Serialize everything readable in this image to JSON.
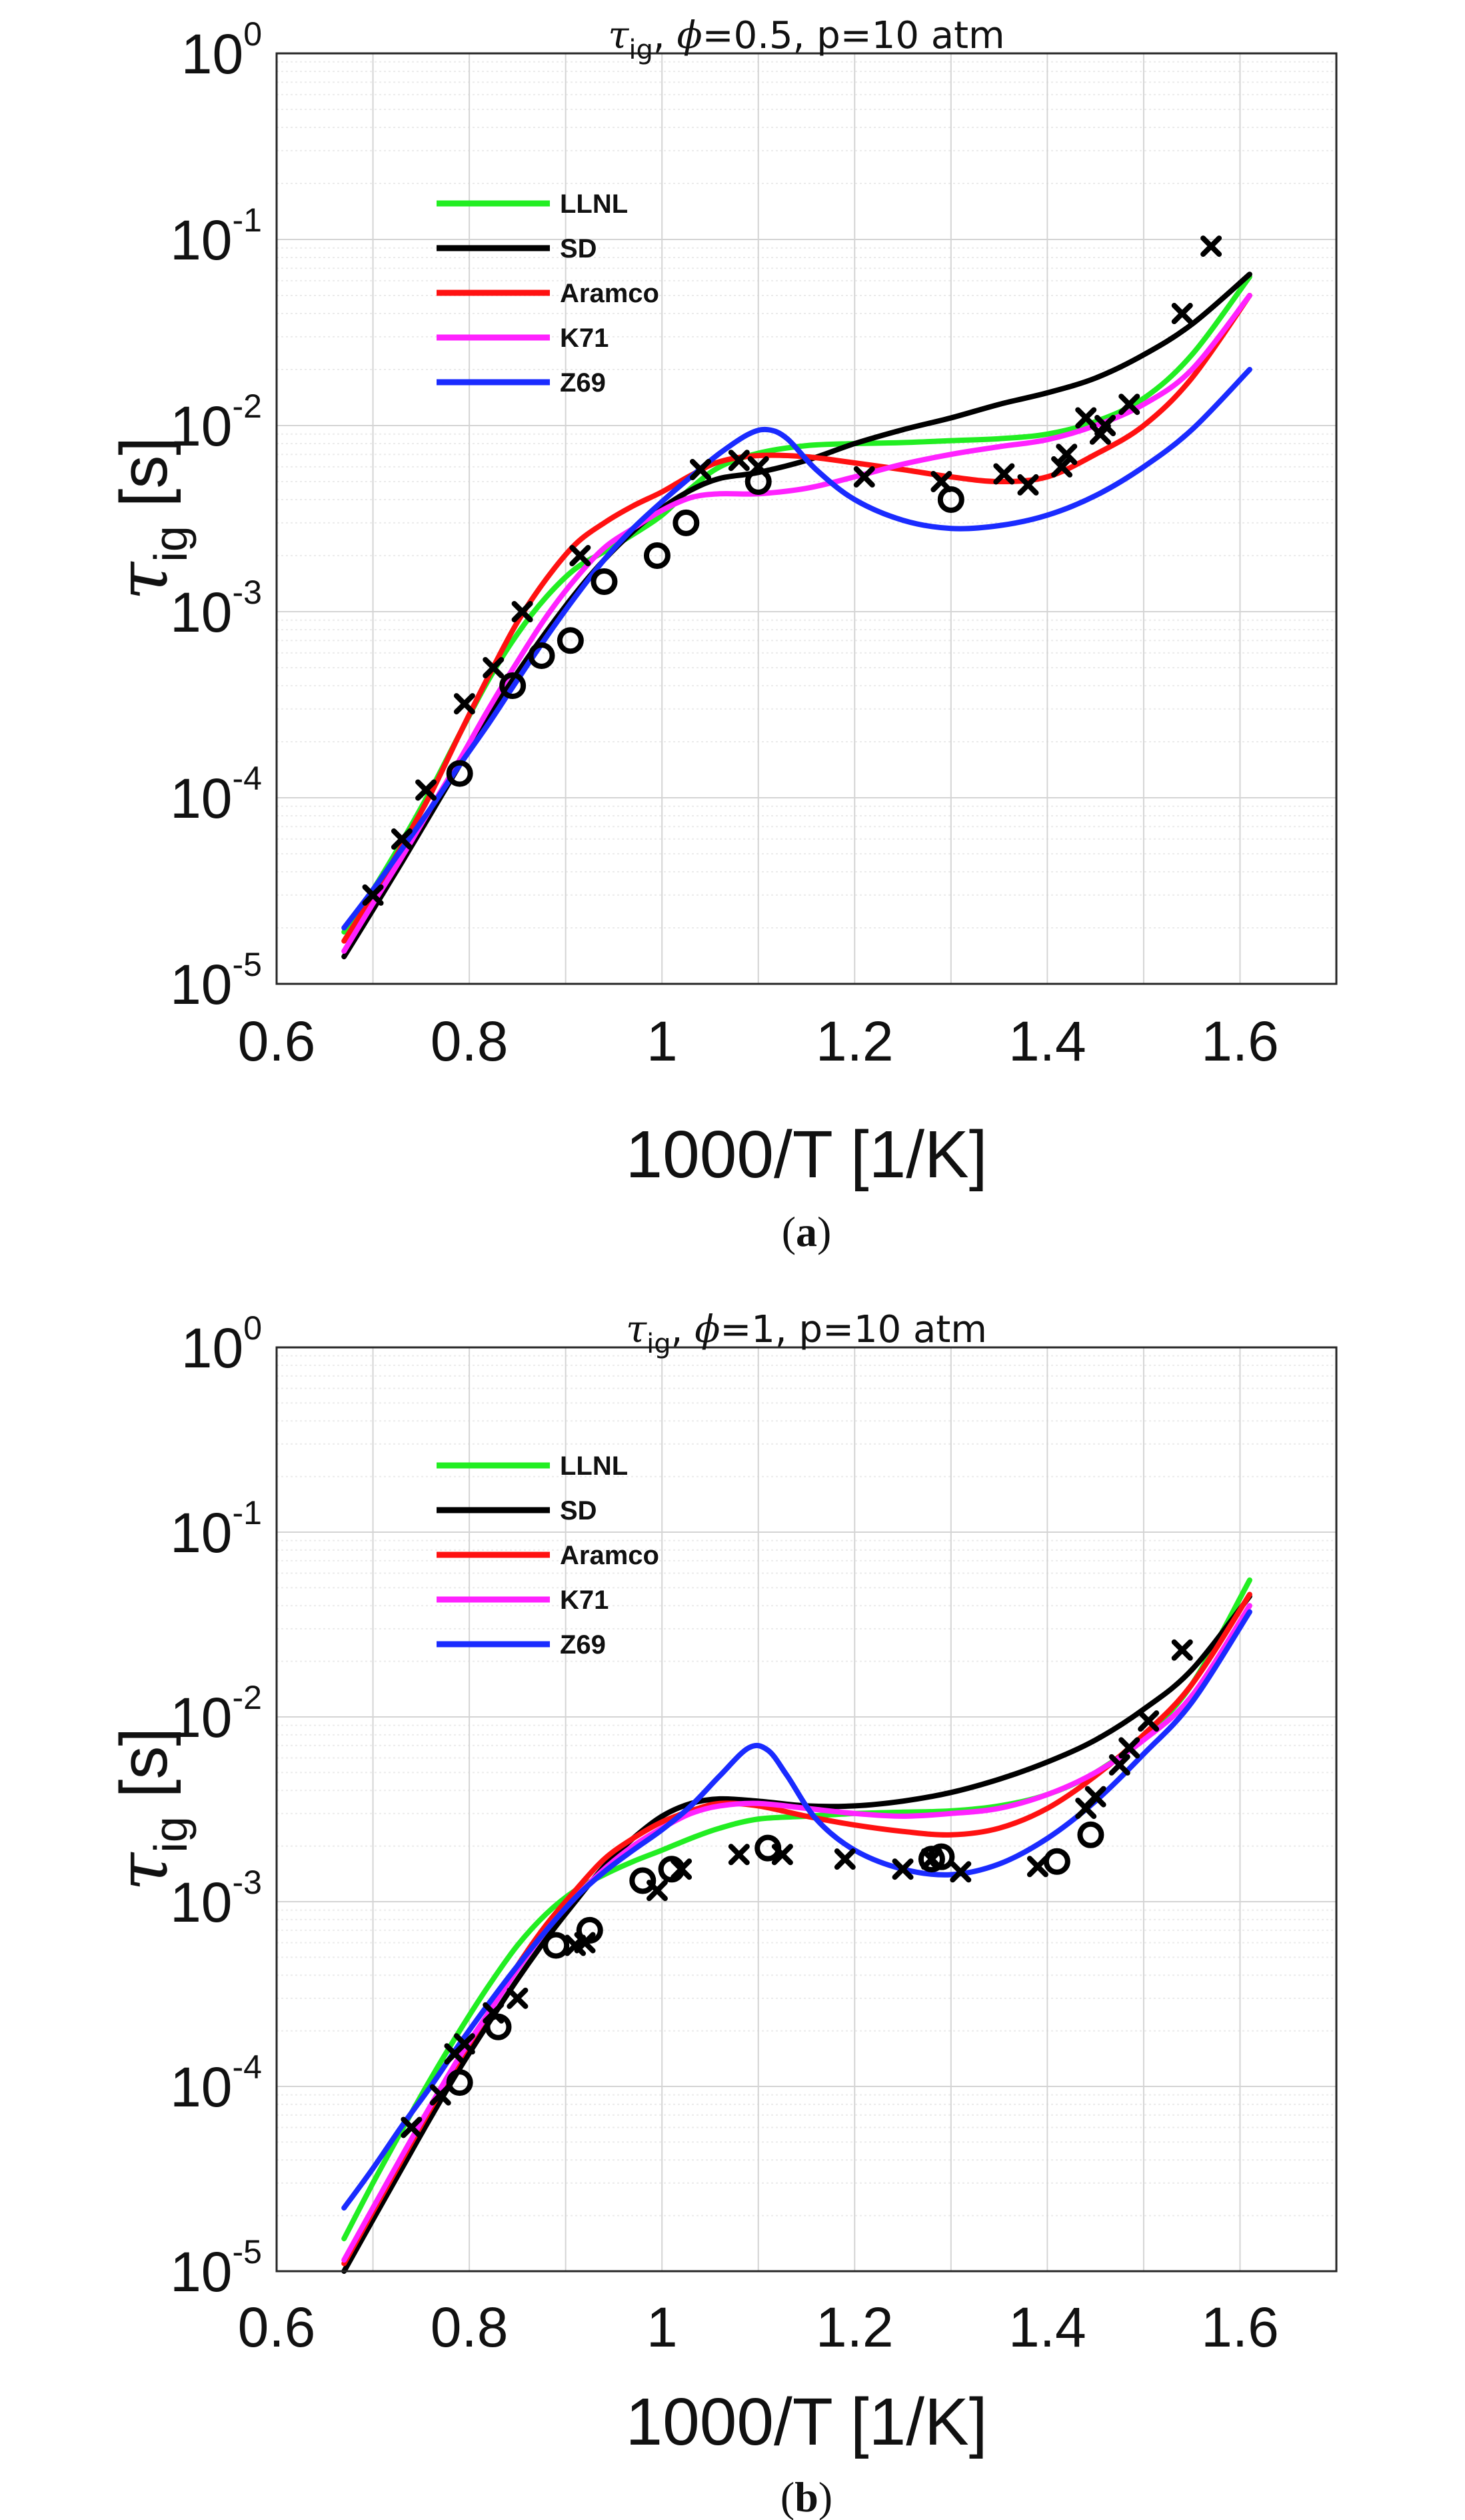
{
  "colors": {
    "LLNL": "#22ee22",
    "SD": "#000000",
    "Aramco": "#ff1111",
    "K71": "#ff22ff",
    "Z69": "#1a2bff",
    "frame": "#262626",
    "grid_major": "#d4d4d4",
    "grid_minor": "#ebebeb"
  },
  "chart_data": [
    {
      "type": "line",
      "panel_label": {
        "open": "(",
        "letter": "a",
        "close": ")"
      },
      "title": {
        "tau": "τ",
        "sub": "ig",
        "rest": ", ",
        "phi": "ϕ",
        "cond": "=0.5, p=10 atm"
      },
      "xlabel": "1000/T [1/K]",
      "ylabel": {
        "tau": "τ",
        "sub": "ig",
        "unit": " [s]"
      },
      "xlim": [
        0.6,
        1.7
      ],
      "ylim_exponent": [
        -5,
        0
      ],
      "yscale": "log",
      "grid": true,
      "legend_position": "top-left",
      "x_tick_labels": [
        "0.6",
        "0.8",
        "1",
        "1.2",
        "1.4",
        "1.6"
      ],
      "y_tick_labels": [
        {
          "base": "10",
          "exp": "-5"
        },
        {
          "base": "10",
          "exp": "-4"
        },
        {
          "base": "10",
          "exp": "-3"
        },
        {
          "base": "10",
          "exp": "-2"
        },
        {
          "base": "10",
          "exp": "-1"
        },
        {
          "base": "10",
          "exp": "0"
        }
      ],
      "series": [
        {
          "name": "LLNL",
          "x": [
            0.67,
            0.7,
            0.73,
            0.76,
            0.79,
            0.82,
            0.85,
            0.88,
            0.91,
            0.94,
            0.97,
            1.0,
            1.03,
            1.06,
            1.1,
            1.15,
            1.2,
            1.25,
            1.3,
            1.35,
            1.4,
            1.45,
            1.5,
            1.55,
            1.61
          ],
          "y": [
            1.9e-05,
            3.2e-05,
            5.8e-05,
            0.00011,
            0.00022,
            0.00043,
            0.00076,
            0.0012,
            0.0017,
            0.0021,
            0.0026,
            0.0033,
            0.0046,
            0.006,
            0.0071,
            0.0078,
            0.008,
            0.0081,
            0.0083,
            0.0085,
            0.009,
            0.0105,
            0.014,
            0.024,
            0.063
          ]
        },
        {
          "name": "SD",
          "x": [
            0.67,
            0.7,
            0.73,
            0.76,
            0.79,
            0.82,
            0.85,
            0.88,
            0.91,
            0.94,
            0.97,
            1.0,
            1.03,
            1.06,
            1.1,
            1.15,
            1.2,
            1.25,
            1.3,
            1.35,
            1.4,
            1.45,
            1.5,
            1.55,
            1.61
          ],
          "y": [
            1.4e-05,
            2.5e-05,
            4.5e-05,
            8.2e-05,
            0.00015,
            0.00027,
            0.00047,
            0.00078,
            0.00125,
            0.0019,
            0.0027,
            0.0036,
            0.0045,
            0.0052,
            0.0056,
            0.0065,
            0.008,
            0.0095,
            0.011,
            0.013,
            0.015,
            0.018,
            0.024,
            0.035,
            0.065
          ]
        },
        {
          "name": "Aramco",
          "x": [
            0.67,
            0.7,
            0.73,
            0.76,
            0.79,
            0.82,
            0.85,
            0.88,
            0.91,
            0.94,
            0.97,
            1.0,
            1.03,
            1.06,
            1.1,
            1.15,
            1.2,
            1.25,
            1.3,
            1.35,
            1.4,
            1.45,
            1.5,
            1.55,
            1.61
          ],
          "y": [
            1.7e-05,
            3e-05,
            5.5e-05,
            0.000105,
            0.00022,
            0.00045,
            0.00088,
            0.0015,
            0.0023,
            0.003,
            0.0037,
            0.0044,
            0.0054,
            0.0064,
            0.0069,
            0.0068,
            0.0063,
            0.0058,
            0.0053,
            0.005,
            0.0053,
            0.007,
            0.01,
            0.018,
            0.05
          ]
        },
        {
          "name": "K71",
          "x": [
            0.67,
            0.7,
            0.73,
            0.76,
            0.79,
            0.82,
            0.85,
            0.88,
            0.91,
            0.94,
            0.97,
            1.0,
            1.03,
            1.06,
            1.1,
            1.15,
            1.2,
            1.25,
            1.3,
            1.35,
            1.4,
            1.45,
            1.5,
            1.55,
            1.61
          ],
          "y": [
            1.5e-05,
            2.7e-05,
            4.8e-05,
            8.8e-05,
            0.00016,
            0.0003,
            0.00054,
            0.00094,
            0.0015,
            0.0022,
            0.0028,
            0.0035,
            0.0041,
            0.0043,
            0.0043,
            0.0046,
            0.0053,
            0.0062,
            0.007,
            0.0077,
            0.0084,
            0.01,
            0.013,
            0.02,
            0.05
          ]
        },
        {
          "name": "Z69",
          "x": [
            0.67,
            0.7,
            0.73,
            0.76,
            0.79,
            0.82,
            0.85,
            0.88,
            0.91,
            0.94,
            0.97,
            1.0,
            1.03,
            1.06,
            1.09,
            1.11,
            1.13,
            1.16,
            1.2,
            1.25,
            1.3,
            1.35,
            1.4,
            1.45,
            1.5,
            1.55,
            1.61
          ],
          "y": [
            2e-05,
            3.2e-05,
            5.3e-05,
            8.8e-05,
            0.00015,
            0.00025,
            0.00043,
            0.00073,
            0.0012,
            0.0019,
            0.0028,
            0.0039,
            0.0053,
            0.0071,
            0.009,
            0.0095,
            0.0085,
            0.0058,
            0.004,
            0.0031,
            0.0028,
            0.0029,
            0.0033,
            0.0042,
            0.006,
            0.0095,
            0.02
          ]
        }
      ],
      "markers": [
        {
          "name": "x-markers",
          "symbol": "x",
          "x": [
            0.7,
            0.73,
            0.755,
            0.795,
            0.825,
            0.855,
            0.915,
            1.04,
            1.08,
            1.1,
            1.21,
            1.29,
            1.355,
            1.38,
            1.415,
            1.42,
            1.44,
            1.455,
            1.46,
            1.485,
            1.54,
            1.57
          ],
          "y": [
            3e-05,
            6e-05,
            0.00011,
            0.00032,
            0.0005,
            0.001,
            0.002,
            0.0058,
            0.0065,
            0.006,
            0.0053,
            0.005,
            0.0055,
            0.0048,
            0.006,
            0.007,
            0.011,
            0.009,
            0.01,
            0.013,
            0.04,
            0.092
          ]
        },
        {
          "name": "o-markers",
          "symbol": "o",
          "x": [
            0.79,
            0.845,
            0.875,
            0.905,
            0.94,
            0.995,
            1.025,
            1.1,
            1.3
          ],
          "y": [
            0.000135,
            0.0004,
            0.00058,
            0.0007,
            0.00145,
            0.002,
            0.003,
            0.005,
            0.004
          ]
        }
      ]
    },
    {
      "type": "line",
      "panel_label": {
        "open": "(",
        "letter": "b",
        "close": ")"
      },
      "title": {
        "tau": "τ",
        "sub": "ig",
        "rest": ", ",
        "phi": "ϕ",
        "cond": "=1, p=10 atm"
      },
      "xlabel": "1000/T [1/K]",
      "ylabel": {
        "tau": "τ",
        "sub": "ig",
        "unit": " [s]"
      },
      "xlim": [
        0.6,
        1.7
      ],
      "ylim_exponent": [
        -5,
        0
      ],
      "yscale": "log",
      "grid": true,
      "legend_position": "top-left",
      "x_tick_labels": [
        "0.6",
        "0.8",
        "1",
        "1.2",
        "1.4",
        "1.6"
      ],
      "y_tick_labels": [
        {
          "base": "10",
          "exp": "-5"
        },
        {
          "base": "10",
          "exp": "-4"
        },
        {
          "base": "10",
          "exp": "-3"
        },
        {
          "base": "10",
          "exp": "-2"
        },
        {
          "base": "10",
          "exp": "-1"
        },
        {
          "base": "10",
          "exp": "0"
        }
      ],
      "series": [
        {
          "name": "LLNL",
          "x": [
            0.67,
            0.7,
            0.73,
            0.76,
            0.79,
            0.82,
            0.85,
            0.88,
            0.91,
            0.94,
            0.97,
            1.0,
            1.03,
            1.06,
            1.1,
            1.15,
            1.2,
            1.25,
            1.3,
            1.35,
            1.4,
            1.45,
            1.5,
            1.55,
            1.61
          ],
          "y": [
            1.5e-05,
            3e-05,
            5.8e-05,
            0.00011,
            0.0002,
            0.00035,
            0.00058,
            0.00086,
            0.00115,
            0.0014,
            0.00165,
            0.0019,
            0.0022,
            0.0025,
            0.0028,
            0.0029,
            0.003,
            0.00305,
            0.0031,
            0.0033,
            0.0038,
            0.005,
            0.0078,
            0.015,
            0.055
          ]
        },
        {
          "name": "SD",
          "x": [
            0.67,
            0.7,
            0.73,
            0.76,
            0.79,
            0.82,
            0.85,
            0.88,
            0.91,
            0.94,
            0.97,
            1.0,
            1.03,
            1.06,
            1.1,
            1.15,
            1.2,
            1.25,
            1.3,
            1.35,
            1.4,
            1.45,
            1.5,
            1.55,
            1.61
          ],
          "y": [
            1e-05,
            1.9e-05,
            3.6e-05,
            6.8e-05,
            0.000125,
            0.00022,
            0.00038,
            0.00063,
            0.001,
            0.00155,
            0.0022,
            0.0029,
            0.0034,
            0.0036,
            0.0035,
            0.0033,
            0.0033,
            0.0035,
            0.0039,
            0.0046,
            0.0057,
            0.0075,
            0.011,
            0.018,
            0.045
          ]
        },
        {
          "name": "Aramco",
          "x": [
            0.67,
            0.7,
            0.73,
            0.76,
            0.79,
            0.82,
            0.85,
            0.88,
            0.91,
            0.94,
            0.97,
            1.0,
            1.03,
            1.06,
            1.1,
            1.15,
            1.2,
            1.25,
            1.3,
            1.35,
            1.4,
            1.45,
            1.5,
            1.55,
            1.61
          ],
          "y": [
            1.1e-05,
            2.1e-05,
            4e-05,
            7.6e-05,
            0.00014,
            0.00025,
            0.00045,
            0.00075,
            0.00115,
            0.0017,
            0.0022,
            0.0027,
            0.0031,
            0.0034,
            0.0033,
            0.0029,
            0.0026,
            0.0024,
            0.0023,
            0.0025,
            0.0032,
            0.0048,
            0.008,
            0.015,
            0.046
          ]
        },
        {
          "name": "K71",
          "x": [
            0.67,
            0.7,
            0.73,
            0.76,
            0.79,
            0.82,
            0.85,
            0.88,
            0.91,
            0.94,
            0.97,
            1.0,
            1.03,
            1.06,
            1.1,
            1.15,
            1.2,
            1.25,
            1.3,
            1.35,
            1.4,
            1.45,
            1.5,
            1.55,
            1.61
          ],
          "y": [
            1.15e-05,
            2.2e-05,
            4.2e-05,
            7.9e-05,
            0.000145,
            0.00025,
            0.00043,
            0.0007,
            0.00105,
            0.0015,
            0.002,
            0.0025,
            0.003,
            0.0033,
            0.0034,
            0.0032,
            0.003,
            0.0029,
            0.003,
            0.0032,
            0.0038,
            0.005,
            0.0075,
            0.013,
            0.04
          ]
        },
        {
          "name": "Z69",
          "x": [
            0.67,
            0.7,
            0.73,
            0.76,
            0.79,
            0.82,
            0.85,
            0.88,
            0.91,
            0.94,
            0.97,
            1.0,
            1.03,
            1.06,
            1.09,
            1.11,
            1.13,
            1.16,
            1.2,
            1.25,
            1.3,
            1.35,
            1.4,
            1.45,
            1.5,
            1.55,
            1.61
          ],
          "y": [
            2.2e-05,
            3.6e-05,
            6.1e-05,
            0.0001,
            0.00017,
            0.00028,
            0.00045,
            0.0007,
            0.00105,
            0.00145,
            0.0019,
            0.00245,
            0.0033,
            0.0048,
            0.0068,
            0.0066,
            0.0048,
            0.0028,
            0.0019,
            0.0015,
            0.0014,
            0.0016,
            0.0022,
            0.0035,
            0.0063,
            0.012,
            0.037
          ]
        }
      ],
      "markers": [
        {
          "name": "x-markers",
          "symbol": "x",
          "x": [
            0.74,
            0.77,
            0.785,
            0.795,
            0.825,
            0.85,
            0.91,
            0.92,
            0.995,
            1.02,
            1.08,
            1.125,
            1.19,
            1.25,
            1.28,
            1.31,
            1.39,
            1.44,
            1.45,
            1.475,
            1.485,
            1.505,
            1.54
          ],
          "y": [
            6e-05,
            9e-05,
            0.00015,
            0.00017,
            0.00025,
            0.0003,
            0.00058,
            0.0006,
            0.00115,
            0.0015,
            0.0018,
            0.0018,
            0.0017,
            0.0015,
            0.0017,
            0.00145,
            0.00155,
            0.0032,
            0.0037,
            0.0055,
            0.0068,
            0.0095,
            0.023
          ]
        },
        {
          "name": "o-markers",
          "symbol": "o",
          "x": [
            0.79,
            0.83,
            0.89,
            0.925,
            0.98,
            1.01,
            1.11,
            1.28,
            1.29,
            1.41,
            1.445
          ],
          "y": [
            0.000105,
            0.00021,
            0.00058,
            0.0007,
            0.0013,
            0.0015,
            0.00195,
            0.0017,
            0.00175,
            0.00165,
            0.0023
          ]
        }
      ]
    }
  ]
}
